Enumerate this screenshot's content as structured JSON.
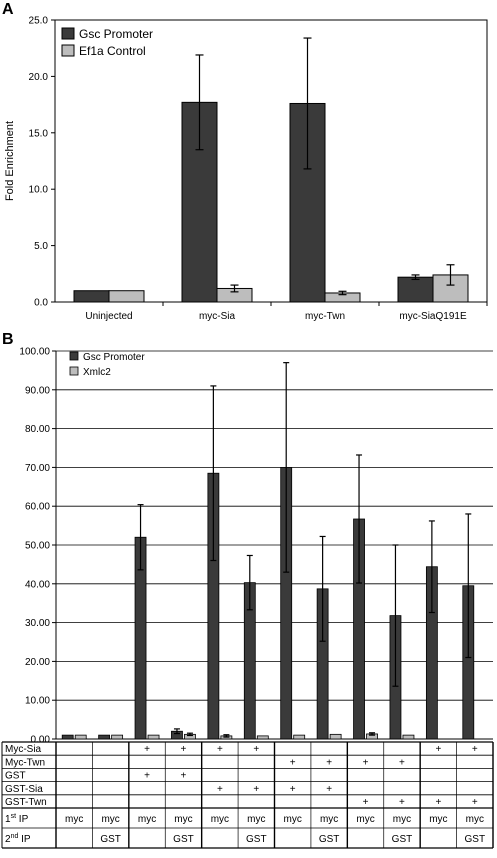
{
  "panels": {
    "a_letter": "A",
    "b_letter": "B"
  },
  "colors": {
    "dark": "#3a3a3a",
    "light": "#bdbdbd",
    "axis": "#000000"
  },
  "chart_data": [
    {
      "type": "bar",
      "panel": "A",
      "title": "",
      "xlabel": "",
      "ylabel": "Fold Enrichment",
      "ylim": [
        0,
        25
      ],
      "yticks": [
        "0.0",
        "5.0",
        "10.0",
        "15.0",
        "20.0",
        "25.0"
      ],
      "categories": [
        "Uninjected",
        "myc-Sia",
        "myc-Twn",
        "myc-SiaQ191E"
      ],
      "grid": false,
      "legend_position": "top-left",
      "series": [
        {
          "name": "Gsc Promoter",
          "color": "#3a3a3a",
          "values": [
            1.0,
            17.7,
            17.6,
            2.2
          ],
          "errors": [
            0.0,
            4.2,
            5.8,
            0.2
          ]
        },
        {
          "name": "Ef1a Control",
          "color": "#bdbdbd",
          "values": [
            1.0,
            1.2,
            0.8,
            2.4
          ],
          "errors": [
            0.0,
            0.3,
            0.15,
            0.9
          ]
        }
      ]
    },
    {
      "type": "bar",
      "panel": "B",
      "title": "",
      "xlabel": "",
      "ylabel": "",
      "ylim": [
        0,
        100
      ],
      "yticks": [
        "0.00",
        "10.00",
        "20.00",
        "30.00",
        "40.00",
        "50.00",
        "60.00",
        "70.00",
        "80.00",
        "90.00",
        "100.00"
      ],
      "grid": true,
      "legend_position": "top-left",
      "series": [
        {
          "name": "Gsc Promoter",
          "color": "#3a3a3a",
          "values": [
            1.0,
            1.0,
            52.0,
            2.0,
            68.5,
            40.3,
            70.0,
            38.7,
            56.7,
            31.8,
            44.4,
            39.5
          ],
          "errors": [
            0,
            0,
            8.4,
            0.6,
            22.5,
            7.0,
            27.0,
            13.5,
            16.5,
            18.2,
            11.8,
            18.5
          ]
        },
        {
          "name": "Xmlc2",
          "color": "#bdbdbd",
          "values": [
            1.0,
            1.0,
            1.0,
            1.2,
            0.8,
            0.8,
            1.0,
            1.2,
            1.3,
            1.0,
            0.0,
            0.0
          ],
          "errors": [
            0,
            0,
            0,
            0.3,
            0.3,
            0,
            0,
            0,
            0.3,
            0,
            0,
            0
          ]
        }
      ],
      "table": {
        "row_labels": [
          "Myc-Sia",
          "Myc-Twn",
          "GST",
          "GST-Sia",
          "GST-Twn"
        ],
        "rows": [
          [
            "",
            "",
            "+",
            "+",
            "+",
            "+",
            "",
            "",
            "",
            "",
            "+",
            "+"
          ],
          [
            "",
            "",
            "",
            "",
            "",
            "",
            "+",
            "+",
            "+",
            "+",
            "",
            ""
          ],
          [
            "",
            "",
            "+",
            "+",
            "",
            "",
            "",
            "",
            "",
            "",
            "",
            ""
          ],
          [
            "",
            "",
            "",
            "",
            "+",
            "+",
            "+",
            "+",
            "",
            "",
            "",
            ""
          ],
          [
            "",
            "",
            "",
            "",
            "",
            "",
            "",
            "",
            "+",
            "+",
            "+",
            "+"
          ]
        ],
        "ip_rows": [
          {
            "num": "1",
            "sup": "st",
            "word": " IP",
            "values": [
              "myc",
              "myc",
              "myc",
              "myc",
              "myc",
              "myc",
              "myc",
              "myc",
              "myc",
              "myc",
              "myc",
              "myc"
            ]
          },
          {
            "num": "2",
            "sup": "nd",
            "word": " IP",
            "values": [
              "",
              "GST",
              "",
              "GST",
              "",
              "GST",
              "",
              "GST",
              "",
              "GST",
              "",
              "GST"
            ]
          }
        ]
      }
    }
  ]
}
